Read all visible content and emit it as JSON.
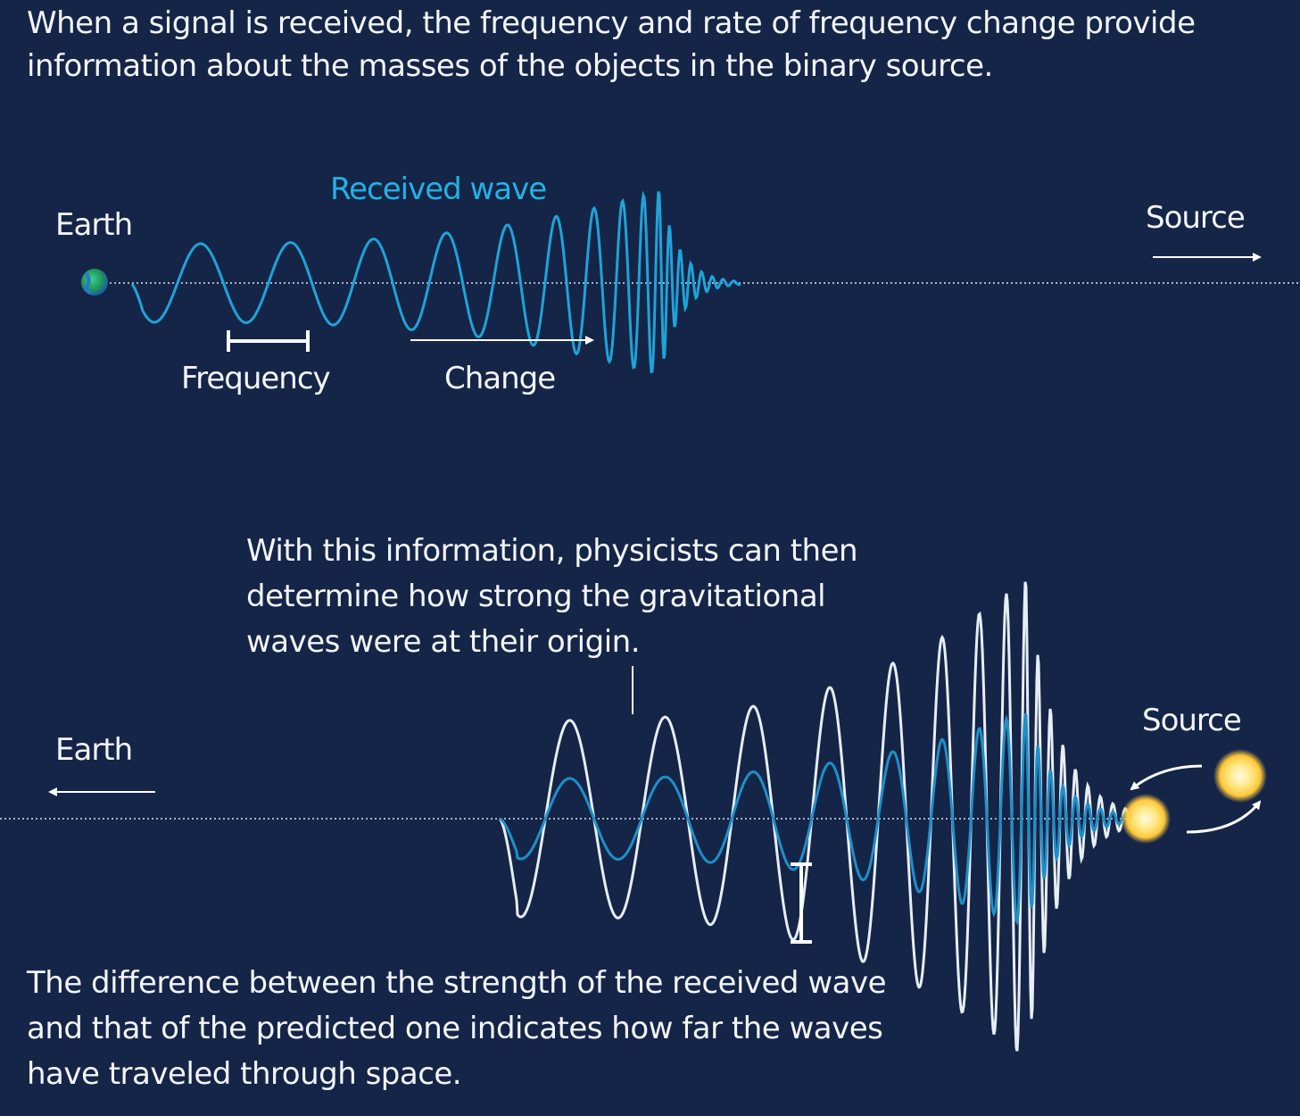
{
  "texts": {
    "intro": "When a signal is received, the frequency and rate of frequency change provide information about the masses of the objects in the binary source.",
    "info": "With this information, physicists can then determine how strong the gravitational waves were at their origin.",
    "difference": "The difference between the strength of the received wave and that of the predicted one indicates how far the waves have traveled through space."
  },
  "top_panel": {
    "earth_label": "Earth",
    "source_label": "Source",
    "received_wave_label": "Received wave",
    "frequency_label": "Frequency",
    "change_label": "Change"
  },
  "bottom_panel": {
    "earth_label": "Earth",
    "source_label": "Source"
  },
  "colors": {
    "background": "#152547",
    "received_wave": "#1fa3d8",
    "predicted_wave": "#e6edf5",
    "accent_text": "#22b2e6",
    "earth_blue": "#2a78c8",
    "earth_green": "#2fb36a",
    "star": "#ffd94a"
  },
  "icons": [
    "earth-icon",
    "arrow-right-icon",
    "arrow-left-icon",
    "star-icon",
    "orbit-arrow-icon"
  ]
}
